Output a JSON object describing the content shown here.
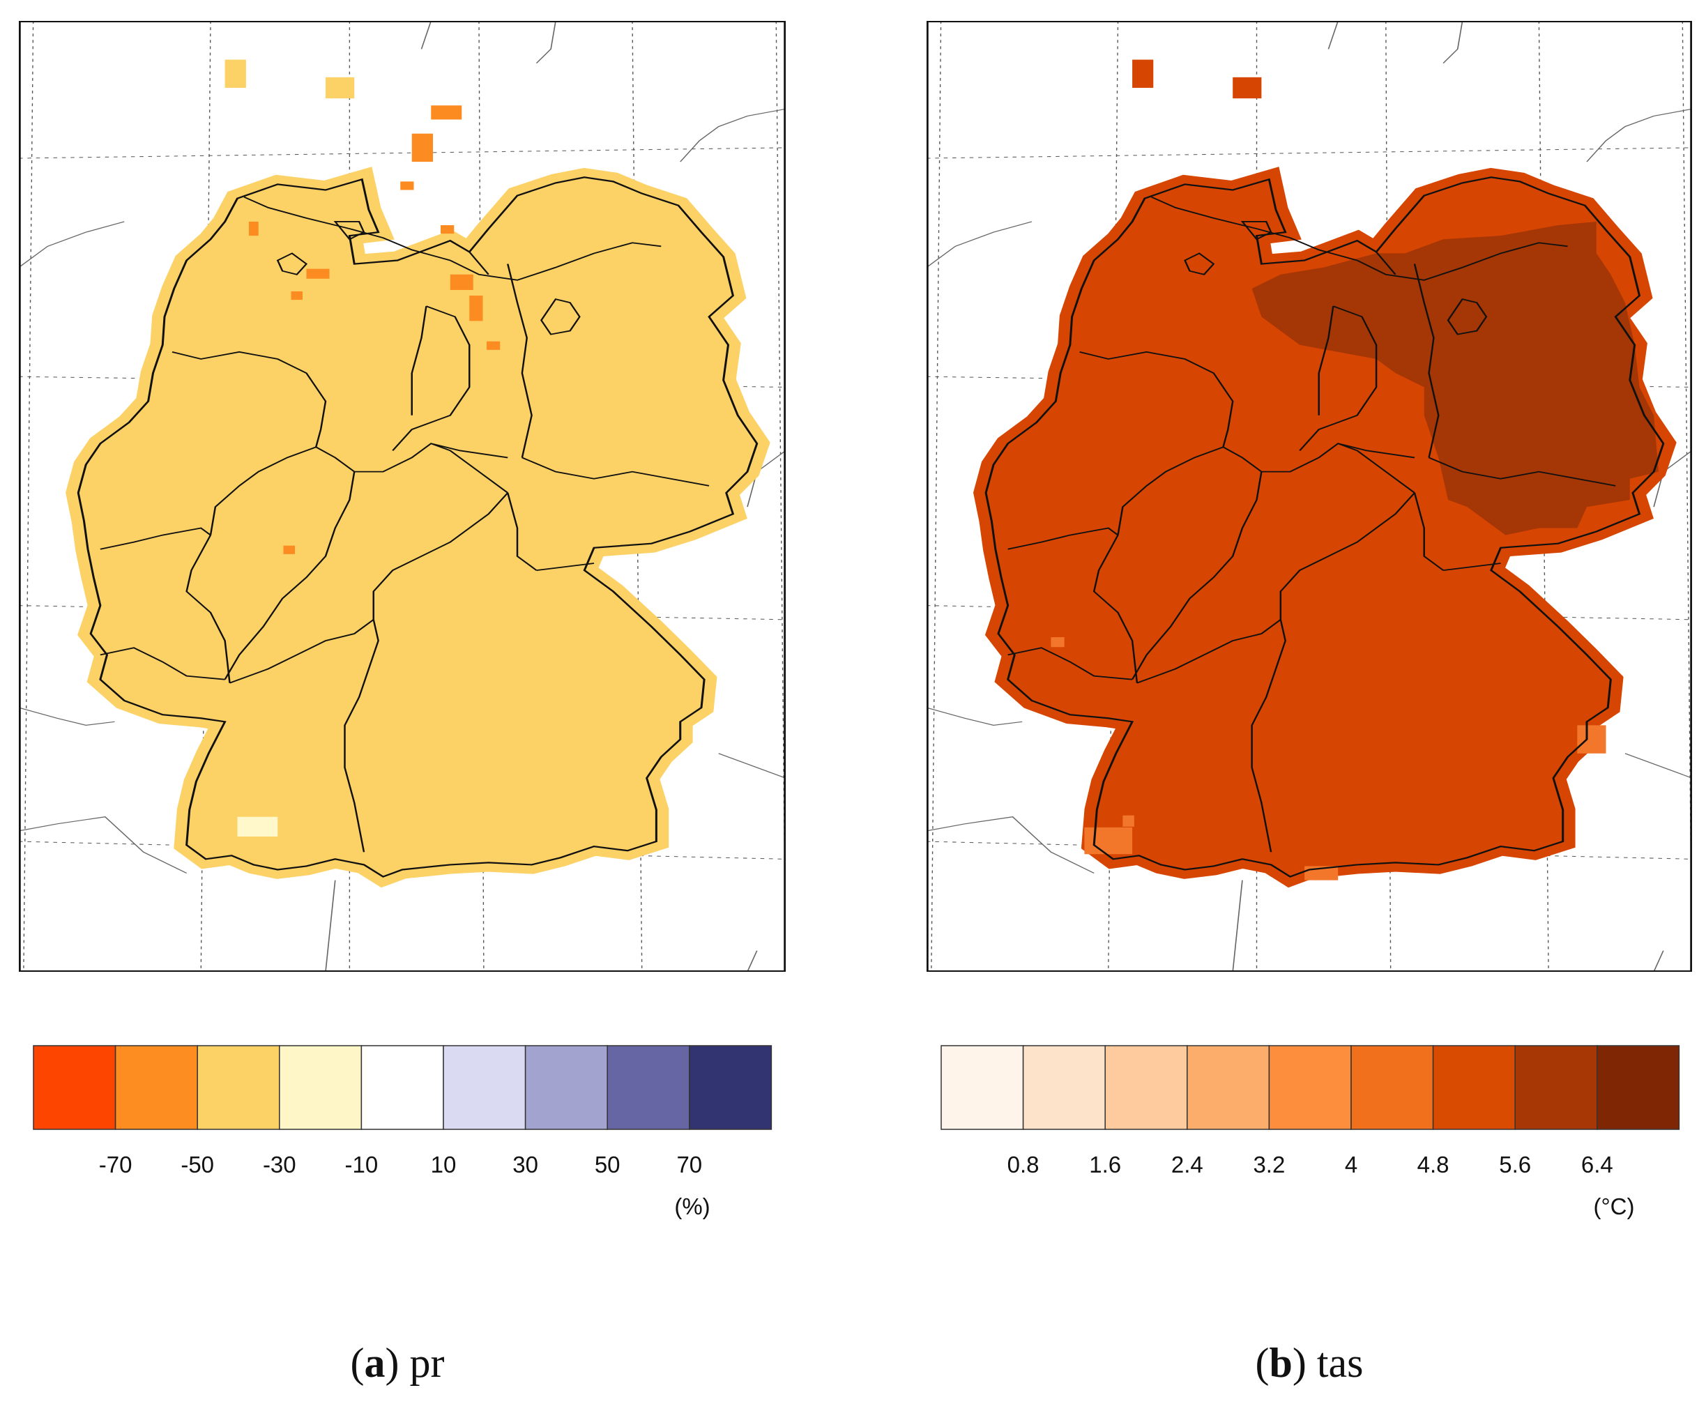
{
  "panel_a": {
    "caption_letter": "a",
    "caption_variable": "pr",
    "fill_colors": {
      "land": "#fcd166",
      "dry_cells": "#fc8c22",
      "wet_cell": "#fff8cb"
    },
    "legend": {
      "colors": [
        "#fe4500",
        "#fd8c21",
        "#fcd166",
        "#fff6c8",
        "#ffffff",
        "#dadaf2",
        "#a2a3cf",
        "#6666a4",
        "#323471"
      ],
      "ticks": [
        "-70",
        "-50",
        "-30",
        "-10",
        "10",
        "30",
        "50",
        "70"
      ],
      "unit": "(%)"
    }
  },
  "panel_b": {
    "caption_letter": "b",
    "caption_variable": "tas",
    "fill_colors": {
      "land": "#d74502",
      "hot_region": "#a53605",
      "cooler_cells": "#f2772a"
    },
    "legend": {
      "colors": [
        "#fff4ea",
        "#fee3cb",
        "#fdcb9d",
        "#fdad6b",
        "#fd8e3e",
        "#f0701b",
        "#d84b00",
        "#a73704",
        "#7f2704"
      ],
      "ticks": [
        "0.8",
        "1.6",
        "2.4",
        "3.2",
        "4",
        "4.8",
        "5.6",
        "6.4"
      ],
      "unit": "(°C)"
    }
  }
}
